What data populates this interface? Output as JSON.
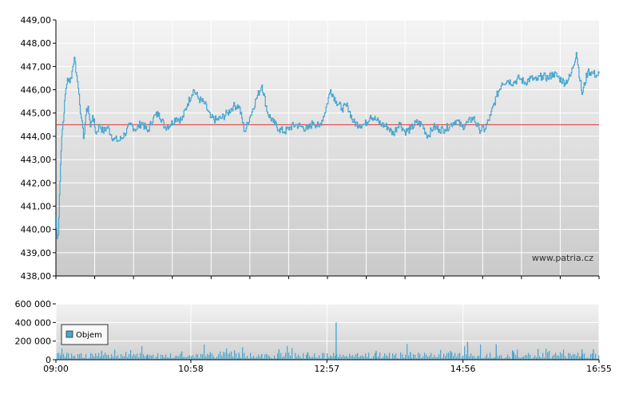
{
  "chart_data": [
    {
      "type": "line",
      "title": "",
      "xlabel": "",
      "ylabel": "",
      "x_range": [
        "09:00",
        "16:55"
      ],
      "ylim": [
        438.0,
        449.0
      ],
      "y_ticks": [
        "438,00",
        "439,00",
        "440,00",
        "441,00",
        "442,00",
        "443,00",
        "444,00",
        "445,00",
        "446,00",
        "447,00",
        "448,00",
        "449,00"
      ],
      "grid": true,
      "reference_line": {
        "value": 444.5,
        "color": "#e03030"
      },
      "watermark": "www.patria.cz",
      "series": [
        {
          "color": "#4aa6cf",
          "x": [
            "09:00",
            "09:01",
            "09:02",
            "09:03",
            "09:04",
            "09:05",
            "09:06",
            "09:07",
            "09:08",
            "09:10",
            "09:12",
            "09:14",
            "09:16",
            "09:18",
            "09:20",
            "09:22",
            "09:24",
            "09:26",
            "09:28",
            "09:30",
            "09:32",
            "09:35",
            "09:38",
            "09:41",
            "09:45",
            "09:50",
            "09:55",
            "10:00",
            "10:05",
            "10:10",
            "10:15",
            "10:20",
            "10:25",
            "10:30",
            "10:35",
            "10:40",
            "10:45",
            "10:50",
            "10:55",
            "11:00",
            "11:05",
            "11:10",
            "11:15",
            "11:20",
            "11:25",
            "11:30",
            "11:35",
            "11:40",
            "11:45",
            "11:50",
            "11:55",
            "12:00",
            "12:05",
            "12:10",
            "12:15",
            "12:20",
            "12:25",
            "12:30",
            "12:35",
            "12:40",
            "12:45",
            "12:50",
            "12:55",
            "13:00",
            "13:05",
            "13:10",
            "13:15",
            "13:20",
            "13:25",
            "13:30",
            "13:35",
            "13:40",
            "13:45",
            "13:50",
            "13:55",
            "14:00",
            "14:05",
            "14:10",
            "14:15",
            "14:20",
            "14:25",
            "14:30",
            "14:35",
            "14:40",
            "14:45",
            "14:50",
            "14:55",
            "15:00",
            "15:05",
            "15:10",
            "15:15",
            "15:20",
            "15:25",
            "15:30",
            "15:35",
            "15:40",
            "15:45",
            "15:50",
            "15:55",
            "16:00",
            "16:05",
            "16:10",
            "16:15",
            "16:20",
            "16:25",
            "16:30",
            "16:35",
            "16:40",
            "16:45",
            "16:50",
            "16:53",
            "16:55"
          ],
          "y": [
            440.5,
            439.6,
            439.8,
            441.5,
            442.8,
            444.0,
            444.6,
            445.0,
            445.8,
            446.5,
            446.3,
            446.8,
            447.4,
            446.6,
            445.8,
            444.8,
            443.9,
            444.9,
            445.3,
            444.4,
            444.9,
            444.1,
            444.5,
            444.2,
            444.4,
            443.9,
            443.8,
            444.1,
            444.5,
            444.3,
            444.6,
            444.2,
            444.8,
            445.0,
            444.4,
            444.5,
            444.8,
            444.7,
            445.4,
            446.0,
            445.6,
            445.4,
            444.8,
            444.7,
            444.8,
            445.0,
            445.3,
            445.3,
            444.2,
            444.9,
            445.6,
            446.2,
            445.0,
            444.6,
            444.3,
            444.2,
            444.4,
            444.5,
            444.4,
            444.3,
            444.6,
            444.4,
            445.0,
            446.0,
            445.5,
            445.2,
            445.3,
            444.6,
            444.5,
            444.5,
            444.9,
            444.7,
            444.5,
            444.4,
            444.1,
            444.6,
            444.2,
            444.3,
            444.6,
            444.5,
            444.0,
            444.4,
            444.3,
            444.3,
            444.5,
            444.7,
            444.4,
            444.6,
            444.8,
            444.3,
            444.3,
            444.9,
            445.7,
            446.3,
            446.4,
            446.3,
            446.5,
            446.3,
            446.5,
            446.4,
            446.6,
            446.5,
            446.7,
            446.5,
            446.3,
            446.6,
            447.6,
            445.8,
            446.8,
            446.7,
            446.6,
            446.7
          ]
        }
      ]
    },
    {
      "type": "bar",
      "title": "",
      "xlabel": "",
      "ylabel": "",
      "x_range": [
        "09:00",
        "16:55"
      ],
      "ylim": [
        0,
        600000
      ],
      "y_ticks": [
        "0",
        "200 000",
        "400 000",
        "600 000"
      ],
      "x_ticks": [
        "09:00",
        "10:58",
        "12:57",
        "14:56",
        "16:55"
      ],
      "grid": true,
      "legend": {
        "position": "left",
        "entries": [
          "Objem"
        ]
      },
      "series": [
        {
          "name": "Objem",
          "color": "#4aa6cf",
          "x": [
            "09:05",
            "09:40",
            "10:20",
            "10:50",
            "11:15",
            "11:40",
            "12:00",
            "12:15",
            "12:40",
            "13:00",
            "13:05",
            "13:40",
            "14:10",
            "14:45",
            "15:00",
            "15:25",
            "15:40",
            "16:10",
            "16:40",
            "16:50"
          ],
          "values": [
            65000,
            95000,
            60000,
            90000,
            80000,
            75000,
            60000,
            110000,
            75000,
            45000,
            400000,
            95000,
            80000,
            95000,
            190000,
            165000,
            90000,
            80000,
            110000,
            110000
          ]
        }
      ]
    }
  ]
}
